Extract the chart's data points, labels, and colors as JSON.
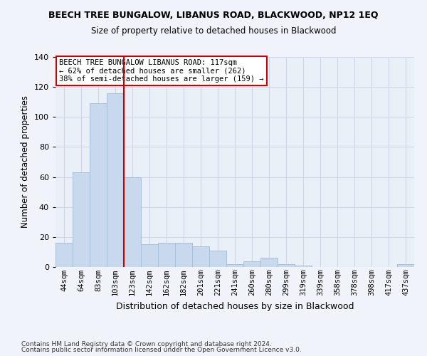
{
  "title": "BEECH TREE BUNGALOW, LIBANUS ROAD, BLACKWOOD, NP12 1EQ",
  "subtitle": "Size of property relative to detached houses in Blackwood",
  "xlabel": "Distribution of detached houses by size in Blackwood",
  "ylabel": "Number of detached properties",
  "bar_color": "#c9d9ed",
  "bar_edge_color": "#a8bfd8",
  "categories": [
    "44sqm",
    "64sqm",
    "83sqm",
    "103sqm",
    "123sqm",
    "142sqm",
    "162sqm",
    "182sqm",
    "201sqm",
    "221sqm",
    "241sqm",
    "260sqm",
    "280sqm",
    "299sqm",
    "319sqm",
    "339sqm",
    "358sqm",
    "378sqm",
    "398sqm",
    "417sqm",
    "437sqm"
  ],
  "values": [
    16,
    63,
    109,
    116,
    60,
    15,
    16,
    16,
    14,
    11,
    2,
    4,
    6,
    2,
    1,
    0,
    0,
    0,
    0,
    0,
    2
  ],
  "vline_x": 3.5,
  "vline_color": "#cc0000",
  "annotation_text": "BEECH TREE BUNGALOW LIBANUS ROAD: 117sqm\n← 62% of detached houses are smaller (262)\n38% of semi-detached houses are larger (159) →",
  "annotation_box_color": "#ffffff",
  "annotation_box_edge": "#cc0000",
  "ylim": [
    0,
    140
  ],
  "yticks": [
    0,
    20,
    40,
    60,
    80,
    100,
    120,
    140
  ],
  "grid_color": "#d0d8e8",
  "background_color": "#eaf0f8",
  "fig_background": "#f0f4fa",
  "footer1": "Contains HM Land Registry data © Crown copyright and database right 2024.",
  "footer2": "Contains public sector information licensed under the Open Government Licence v3.0.",
  "title_fontsize": 9,
  "subtitle_fontsize": 8.5,
  "ylabel_fontsize": 8.5,
  "xlabel_fontsize": 9,
  "tick_fontsize": 8,
  "xtick_fontsize": 7.5,
  "annotation_fontsize": 7.5,
  "footer_fontsize": 6.5
}
